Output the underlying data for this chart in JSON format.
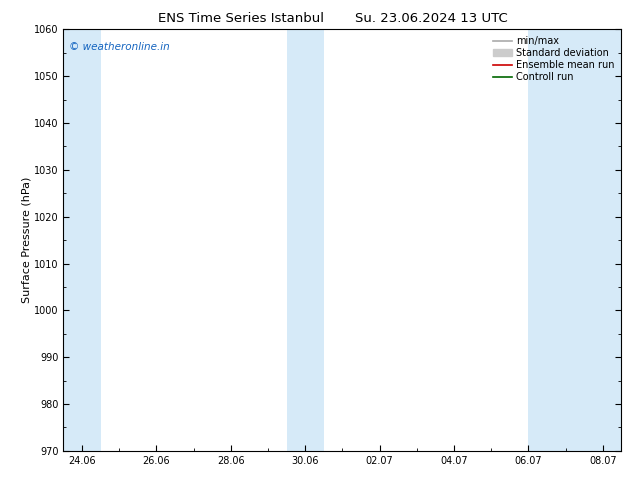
{
  "title_left": "ENS Time Series Istanbul",
  "title_right": "Su. 23.06.2024 13 UTC",
  "ylabel": "Surface Pressure (hPa)",
  "ylim": [
    970,
    1060
  ],
  "yticks": [
    970,
    980,
    990,
    1000,
    1010,
    1020,
    1030,
    1040,
    1050,
    1060
  ],
  "xtick_labels": [
    "24.06",
    "26.06",
    "28.06",
    "30.06",
    "02.07",
    "04.07",
    "06.07",
    "08.07"
  ],
  "xtick_positions": [
    0,
    2,
    4,
    6,
    8,
    10,
    12,
    14
  ],
  "xlim": [
    -0.5,
    14.5
  ],
  "shade_bands": [
    {
      "start": -0.5,
      "end": 0.5,
      "color": "#d6eaf8"
    },
    {
      "start": 5.5,
      "end": 6.5,
      "color": "#d6eaf8"
    },
    {
      "start": 12.0,
      "end": 14.5,
      "color": "#d6eaf8"
    }
  ],
  "watermark": "© weatheronline.in",
  "watermark_color": "#1565c0",
  "legend_items": [
    {
      "label": "min/max",
      "color": "#aaaaaa",
      "lw": 1.2,
      "style": "-",
      "type": "line"
    },
    {
      "label": "Standard deviation",
      "color": "#cccccc",
      "lw": 5,
      "style": "-",
      "type": "patch"
    },
    {
      "label": "Ensemble mean run",
      "color": "#cc0000",
      "lw": 1.2,
      "style": "-",
      "type": "line"
    },
    {
      "label": "Controll run",
      "color": "#006600",
      "lw": 1.2,
      "style": "-",
      "type": "line"
    }
  ],
  "bg_color": "#ffffff",
  "plot_bg_color": "#ffffff",
  "title_fontsize": 9.5,
  "tick_fontsize": 7,
  "ylabel_fontsize": 8,
  "legend_fontsize": 7
}
